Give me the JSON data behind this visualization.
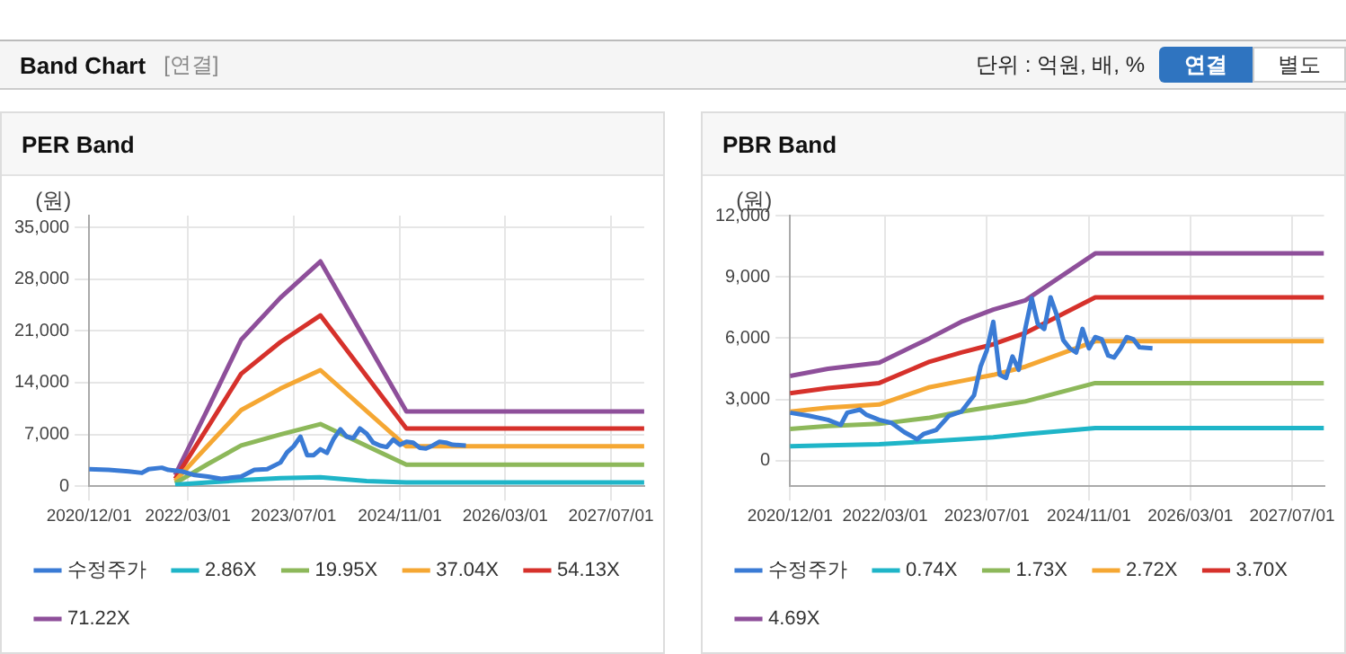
{
  "chart_data": [
    {
      "type": "other",
      "title": "Band Chart",
      "annotations": [
        "[연결]",
        "단위 : 억원, 배, %",
        "연결",
        "별도"
      ]
    },
    {
      "type": "line",
      "title": "PER Band",
      "ylabel": "(원)",
      "xlim": [
        "2020-12-01",
        "2027-12-01"
      ],
      "ylim": [
        0,
        36600
      ],
      "xticks": [
        {
          "value": "2020-12-01",
          "label": "2020/12/01"
        },
        {
          "value": "2022-03-01",
          "label": "2022/03/01"
        },
        {
          "value": "2023-07-01",
          "label": "2023/07/01"
        },
        {
          "value": "2024-11-01",
          "label": "2024/11/01"
        },
        {
          "value": "2026-03-01",
          "label": "2026/03/01"
        },
        {
          "value": "2027-07-01",
          "label": "2027/07/01"
        }
      ],
      "yticks": [
        0,
        {
          "value": 7000,
          "label": "7,000"
        },
        {
          "value": 14000,
          "label": "14,000"
        },
        {
          "value": 21000,
          "label": "21,000"
        },
        {
          "value": 28000,
          "label": "28,000"
        },
        {
          "value": 35000,
          "label": "35,000"
        }
      ],
      "grid": true,
      "legend": "bottom",
      "marker": "none",
      "line_style": "solid",
      "series": [
        {
          "name": "수정주가",
          "color": "#3a7bd5",
          "x": [
            "2020-12",
            "2021-03",
            "2021-06",
            "2021-08",
            "2021-09",
            "2021-11",
            "2021-12",
            "2022-02",
            "2022-04",
            "2022-06",
            "2022-08",
            "2022-09",
            "2022-11",
            "2023-01",
            "2023-03",
            "2023-05",
            "2023-06",
            "2023-07",
            "2023-08",
            "2023-09",
            "2023-10",
            "2023-11",
            "2023-12",
            "2024-01",
            "2024-02",
            "2024-03",
            "2024-04",
            "2024-05",
            "2024-06",
            "2024-07",
            "2024-08",
            "2024-09",
            "2024-10",
            "2024-11",
            "2024-12",
            "2025-01",
            "2025-02",
            "2025-03",
            "2025-04",
            "2025-05",
            "2025-06",
            "2025-07",
            "2025-09"
          ],
          "values": [
            2300,
            2200,
            2000,
            1800,
            2300,
            2500,
            2200,
            2000,
            1500,
            1300,
            1000,
            1100,
            1300,
            2200,
            2300,
            3200,
            4600,
            5400,
            6700,
            4200,
            4200,
            5000,
            4500,
            6400,
            7700,
            6700,
            6500,
            7800,
            7100,
            5900,
            5500,
            5300,
            6300,
            5600,
            6000,
            5900,
            5200,
            5100,
            5500,
            6000,
            5900,
            5600,
            5500
          ]
        },
        {
          "name": "2.86X",
          "color": "#1fb5c8",
          "x": [
            "2022-01",
            "2022-06",
            "2022-11",
            "2023-05",
            "2023-11",
            "2024-06",
            "2024-12",
            "2027-12"
          ],
          "values": [
            200,
            500,
            800,
            1100,
            1200,
            700,
            500,
            500
          ]
        },
        {
          "name": "19.95X",
          "color": "#8db85a",
          "x": [
            "2022-01",
            "2022-06",
            "2022-11",
            "2023-05",
            "2023-11",
            "2024-12",
            "2027-12"
          ],
          "values": [
            400,
            3000,
            5500,
            7000,
            8400,
            2900,
            2900
          ]
        },
        {
          "name": "37.04X",
          "color": "#f5a733",
          "x": [
            "2022-01",
            "2022-06",
            "2022-11",
            "2023-05",
            "2023-11",
            "2024-12",
            "2027-12"
          ],
          "values": [
            700,
            5500,
            10300,
            13200,
            15700,
            5400,
            5400
          ]
        },
        {
          "name": "54.13X",
          "color": "#d6312b",
          "x": [
            "2022-01",
            "2022-06",
            "2022-11",
            "2023-05",
            "2023-11",
            "2024-12",
            "2027-12"
          ],
          "values": [
            1000,
            8000,
            15200,
            19500,
            23100,
            7800,
            7800
          ]
        },
        {
          "name": "71.22X",
          "color": "#8e4f9a",
          "x": [
            "2022-01",
            "2022-06",
            "2022-11",
            "2023-05",
            "2023-11",
            "2024-12",
            "2027-12"
          ],
          "values": [
            1500,
            10500,
            19800,
            25500,
            30400,
            10100,
            10100
          ]
        }
      ]
    },
    {
      "type": "line",
      "title": "PBR Band",
      "ylabel": "(원)",
      "xlim": [
        "2020-12-01",
        "2027-12-01"
      ],
      "ylim": [
        -1250,
        12000
      ],
      "xticks": [
        {
          "value": "2020-12-01",
          "label": "2020/12/01"
        },
        {
          "value": "2022-03-01",
          "label": "2022/03/01"
        },
        {
          "value": "2023-07-01",
          "label": "2023/07/01"
        },
        {
          "value": "2024-11-01",
          "label": "2024/11/01"
        },
        {
          "value": "2026-03-01",
          "label": "2026/03/01"
        },
        {
          "value": "2027-07-01",
          "label": "2027/07/01"
        }
      ],
      "yticks": [
        0,
        {
          "value": 3000,
          "label": "3,000"
        },
        {
          "value": 6000,
          "label": "6,000"
        },
        {
          "value": 9000,
          "label": "9,000"
        },
        {
          "value": 12000,
          "label": "12,000"
        }
      ],
      "grid": true,
      "legend": "bottom",
      "marker": "none",
      "line_style": "solid",
      "series": [
        {
          "name": "수정주가",
          "color": "#3a7bd5",
          "x": [
            "2020-12",
            "2021-03",
            "2021-06",
            "2021-08",
            "2021-09",
            "2021-11",
            "2021-12",
            "2022-02",
            "2022-04",
            "2022-06",
            "2022-08",
            "2022-09",
            "2022-11",
            "2023-01",
            "2023-03",
            "2023-05",
            "2023-06",
            "2023-07",
            "2023-08",
            "2023-09",
            "2023-10",
            "2023-11",
            "2023-12",
            "2024-01",
            "2024-02",
            "2024-03",
            "2024-04",
            "2024-05",
            "2024-06",
            "2024-07",
            "2024-08",
            "2024-09",
            "2024-10",
            "2024-11",
            "2024-12",
            "2025-01",
            "2025-02",
            "2025-03",
            "2025-04",
            "2025-05",
            "2025-06",
            "2025-07",
            "2025-09"
          ],
          "values": [
            2350,
            2200,
            2000,
            1750,
            2350,
            2500,
            2250,
            2000,
            1850,
            1400,
            1050,
            1300,
            1500,
            2200,
            2400,
            3200,
            4600,
            5400,
            6800,
            4200,
            4050,
            5100,
            4450,
            6450,
            7950,
            6700,
            6450,
            8000,
            7100,
            5900,
            5500,
            5300,
            6450,
            5500,
            6050,
            5950,
            5150,
            5050,
            5500,
            6050,
            5950,
            5550,
            5500
          ]
        },
        {
          "name": "0.74X",
          "color": "#1fb5c8",
          "x": [
            "2020-12",
            "2021-06",
            "2022-02",
            "2022-10",
            "2023-03",
            "2023-08",
            "2024-01",
            "2024-12",
            "2027-12"
          ],
          "values": [
            700,
            750,
            800,
            950,
            1050,
            1150,
            1300,
            1600,
            1600
          ]
        },
        {
          "name": "1.73X",
          "color": "#8db85a",
          "x": [
            "2020-12",
            "2021-06",
            "2022-02",
            "2022-10",
            "2023-03",
            "2023-08",
            "2024-01",
            "2024-12",
            "2027-12"
          ],
          "values": [
            1550,
            1700,
            1800,
            2100,
            2400,
            2650,
            2900,
            3800,
            3800
          ]
        },
        {
          "name": "2.72X",
          "color": "#f5a733",
          "x": [
            "2020-12",
            "2021-06",
            "2022-02",
            "2022-10",
            "2023-03",
            "2023-08",
            "2024-01",
            "2024-12",
            "2027-12"
          ],
          "values": [
            2400,
            2600,
            2750,
            3600,
            3900,
            4200,
            4600,
            5850,
            5850
          ]
        },
        {
          "name": "3.70X",
          "color": "#d6312b",
          "x": [
            "2020-12",
            "2021-06",
            "2022-02",
            "2022-10",
            "2023-03",
            "2023-08",
            "2024-01",
            "2024-12",
            "2027-12"
          ],
          "values": [
            3300,
            3550,
            3800,
            4850,
            5300,
            5700,
            6250,
            8000,
            8000
          ]
        },
        {
          "name": "4.69X",
          "color": "#8e4f9a",
          "x": [
            "2020-12",
            "2021-06",
            "2022-02",
            "2022-10",
            "2023-03",
            "2023-08",
            "2024-01",
            "2024-12",
            "2027-12"
          ],
          "values": [
            4150,
            4500,
            4800,
            6000,
            6800,
            7400,
            7850,
            10150,
            10150
          ]
        }
      ]
    }
  ]
}
